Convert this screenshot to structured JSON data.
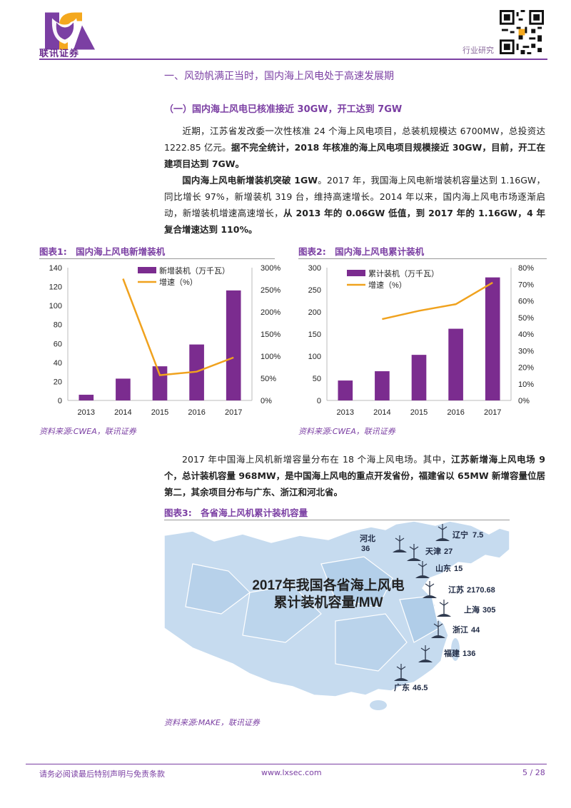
{
  "header": {
    "logo_text": "联讯证券",
    "doc_type": "行业研究"
  },
  "section": {
    "title": "一、风劲帆满正当时，国内海上风电处于高速发展期",
    "subtitle": "（一）国内海上风电已核准接近 30GW，开工达到 7GW"
  },
  "paragraphs": {
    "p1_a": "近期，江苏省发改委一次性核准 24 个海上风电项目，总装机规模达 6700MW，总投资达 1222.85 亿元。",
    "p1_b": "据不完全统计，2018 年核准的海上风电项目规模接近 30GW，目前，开工在建项目达到 7GW。",
    "p2_a": "国内海上风电新增装机突破 1GW",
    "p2_b": "。2017 年，我国海上风电新增装机容量达到 1.16GW，同比增长 97%，新增装机 319 台，维持高速增长。2014 年以来，国内海上风电市场逐渐启动，新增装机增速高速增长，",
    "p2_c": "从 2013 年的 0.06GW 低值，到 2017 年的 1.16GW，4 年复合增速达到 110%。",
    "p3_a": "2017 年中国海上风机新增容量分布在 18 个海上风电场。其中，",
    "p3_b": "江苏新增海上风电场 9 个，总计装机容量 968MW，是中国海上风电的重点开发省份，福建省以 65MW 新增容量位居第二，其余项目分布与广东、浙江和河北省。"
  },
  "figures": {
    "fig1": {
      "label": "图表1:",
      "title": "国内海上风电新增装机",
      "source": "资料来源:CWEA，联讯证券"
    },
    "fig2": {
      "label": "图表2:",
      "title": "国内海上风电累计装机",
      "source": "资料来源:CWEA，联讯证券"
    },
    "fig3": {
      "label": "图表3:",
      "title": "各省海上风机累计装机容量",
      "source": "资料来源:MAKE，联讯证券"
    }
  },
  "chart_data": [
    {
      "type": "bar",
      "title": "国内海上风电新增装机",
      "categories": [
        "2013",
        "2014",
        "2015",
        "2016",
        "2017"
      ],
      "series": [
        {
          "name": "新增装机（万千瓦）",
          "type": "bar",
          "axis": "left",
          "values": [
            6,
            23,
            36,
            59,
            116
          ]
        },
        {
          "name": "增速（%）",
          "type": "line",
          "axis": "right",
          "values": [
            null,
            275,
            57,
            65,
            97
          ]
        }
      ],
      "ylim_left": [
        0,
        140
      ],
      "ylim_right": [
        0,
        300
      ],
      "yticks_left": [
        "0",
        "20",
        "40",
        "60",
        "80",
        "100",
        "120",
        "140"
      ],
      "yticks_right": [
        "0%",
        "50%",
        "100%",
        "150%",
        "200%",
        "250%",
        "300%"
      ],
      "colors": {
        "bar": "#7b2c8f",
        "line": "#f0a21e"
      }
    },
    {
      "type": "bar",
      "title": "国内海上风电累计装机",
      "categories": [
        "2013",
        "2014",
        "2015",
        "2016",
        "2017"
      ],
      "series": [
        {
          "name": "累计装机（万千瓦）",
          "type": "bar",
          "axis": "left",
          "values": [
            45,
            66,
            103,
            162,
            278
          ]
        },
        {
          "name": "增速（%）",
          "type": "line",
          "axis": "right",
          "values": [
            null,
            49,
            54,
            58,
            71
          ]
        }
      ],
      "ylim_left": [
        0,
        300
      ],
      "ylim_right": [
        0,
        80
      ],
      "yticks_left": [
        "0",
        "50",
        "100",
        "150",
        "200",
        "250",
        "300"
      ],
      "yticks_right": [
        "0%",
        "10%",
        "20%",
        "30%",
        "40%",
        "50%",
        "60%",
        "70%",
        "80%"
      ],
      "colors": {
        "bar": "#7b2c8f",
        "line": "#f0a21e"
      }
    }
  ],
  "map": {
    "title_line1": "2017年我国各省海上风电",
    "title_line2": "累计装机容量/MW",
    "provinces": [
      {
        "name": "河北",
        "value": "36"
      },
      {
        "name": "辽宁",
        "value": "7.5"
      },
      {
        "name": "天津",
        "value": "27"
      },
      {
        "name": "山东",
        "value": "15"
      },
      {
        "name": "江苏",
        "value": "2170.68"
      },
      {
        "name": "上海",
        "value": "305"
      },
      {
        "name": "浙江",
        "value": "44"
      },
      {
        "name": "福建",
        "value": "136"
      },
      {
        "name": "广东",
        "value": "46.5"
      }
    ]
  },
  "footer": {
    "disclaimer": "请务必阅读最后特别声明与免责条款",
    "website": "www.lxsec.com",
    "page": "5 / 28"
  }
}
